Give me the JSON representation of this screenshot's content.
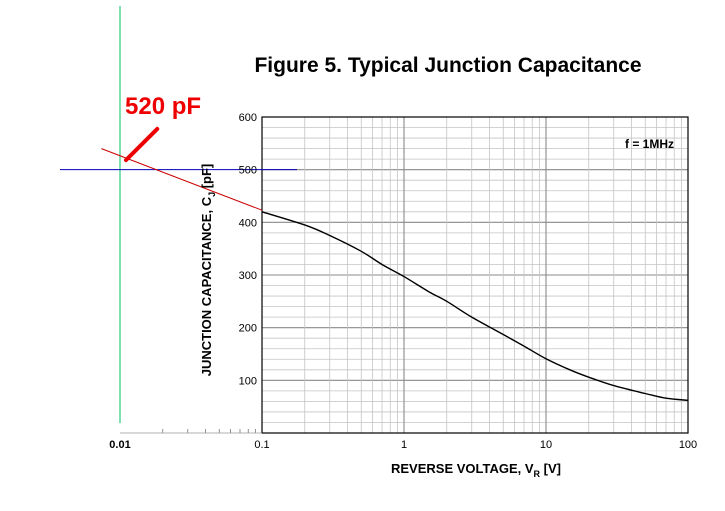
{
  "chart_data": {
    "type": "line",
    "title": "Figure 5.  Typical Junction Capacitance",
    "xlabel": {
      "main": "REVERSE VOLTAGE, V",
      "sub": "R",
      "unit": " [V]"
    },
    "ylabel": {
      "main": "JUNCTION CAPACITANCE, C",
      "sub": "J",
      "unit": " [pF]"
    },
    "x_scale": "log",
    "xlim": [
      0.1,
      100
    ],
    "ylim": [
      0,
      600
    ],
    "x_ticks": [
      {
        "value": 0.01,
        "label": "0.01"
      },
      {
        "value": 0.1,
        "label": "0.1"
      },
      {
        "value": 1,
        "label": "1"
      },
      {
        "value": 10,
        "label": "10"
      },
      {
        "value": 100,
        "label": "100"
      }
    ],
    "y_ticks": [
      {
        "value": 100,
        "label": "100"
      },
      {
        "value": 200,
        "label": "200"
      },
      {
        "value": 300,
        "label": "300"
      },
      {
        "value": 400,
        "label": "400"
      },
      {
        "value": 500,
        "label": "500"
      },
      {
        "value": 600,
        "label": "600"
      }
    ],
    "grid": true,
    "legend_note": "f = 1MHz",
    "series": [
      {
        "color": "#000000",
        "x": [
          0.1,
          0.2,
          0.3,
          0.5,
          0.7,
          1,
          1.5,
          2,
          3,
          5,
          7,
          10,
          15,
          20,
          30,
          50,
          70,
          100
        ],
        "y": [
          420,
          395,
          375,
          345,
          320,
          297,
          268,
          250,
          220,
          187,
          165,
          141,
          119,
          106,
          90,
          75,
          66,
          62
        ]
      }
    ],
    "annotations": {
      "extrapolation_line": {
        "color": "#cc0000",
        "from": {
          "x": 0.0074,
          "y": 540
        },
        "to": {
          "x": 0.1,
          "y": 423
        }
      },
      "vertical_marker": {
        "color": "#00c060",
        "x": 0.01
      },
      "horizontal_marker": {
        "color": "#0000bb",
        "y": 500
      },
      "callout": {
        "text": "520 pF",
        "color": "#ee0000",
        "arrow_from": {
          "x": 0.012,
          "y": 585
        },
        "arrow_to": {
          "x": 0.01,
          "y": 522
        }
      }
    }
  }
}
